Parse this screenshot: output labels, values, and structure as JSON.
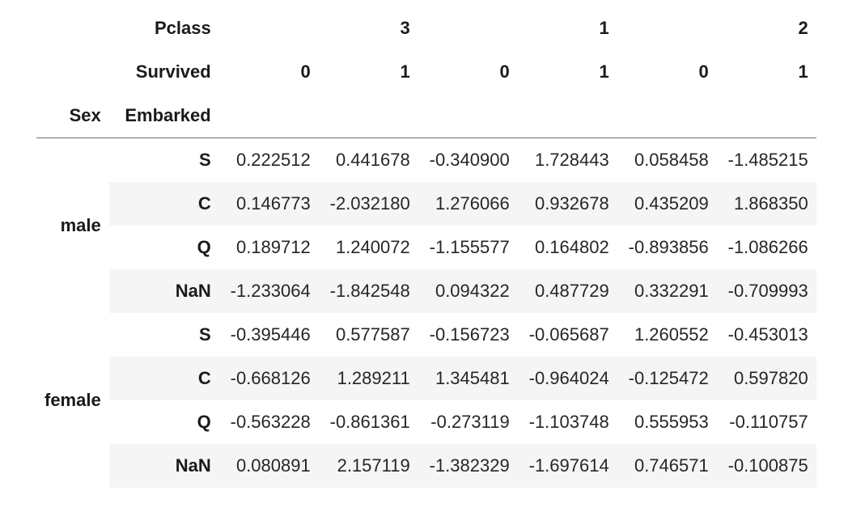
{
  "table": {
    "header": {
      "pclass_label": "Pclass",
      "survived_label": "Survived",
      "sex_label": "Sex",
      "embarked_label": "Embarked",
      "pclass_values": [
        "3",
        "1",
        "2"
      ],
      "survived_values": [
        "0",
        "1",
        "0",
        "1",
        "0",
        "1"
      ]
    },
    "body": {
      "groups": [
        {
          "sex": "male",
          "rows": [
            {
              "embarked": "S",
              "values": [
                "0.222512",
                "0.441678",
                "-0.340900",
                "1.728443",
                "0.058458",
                "-1.485215"
              ]
            },
            {
              "embarked": "C",
              "values": [
                "0.146773",
                "-2.032180",
                "1.276066",
                "0.932678",
                "0.435209",
                "1.868350"
              ]
            },
            {
              "embarked": "Q",
              "values": [
                "0.189712",
                "1.240072",
                "-1.155577",
                "0.164802",
                "-0.893856",
                "-1.086266"
              ]
            },
            {
              "embarked": "NaN",
              "values": [
                "-1.233064",
                "-1.842548",
                "0.094322",
                "0.487729",
                "0.332291",
                "-0.709993"
              ]
            }
          ]
        },
        {
          "sex": "female",
          "rows": [
            {
              "embarked": "S",
              "values": [
                "-0.395446",
                "0.577587",
                "-0.156723",
                "-0.065687",
                "1.260552",
                "-0.453013"
              ]
            },
            {
              "embarked": "C",
              "values": [
                "-0.668126",
                "1.289211",
                "1.345481",
                "-0.964024",
                "-0.125472",
                "0.597820"
              ]
            },
            {
              "embarked": "Q",
              "values": [
                "-0.563228",
                "-0.861361",
                "-0.273119",
                "-1.103748",
                "0.555953",
                "-0.110757"
              ]
            },
            {
              "embarked": "NaN",
              "values": [
                "0.080891",
                "2.157119",
                "-1.382329",
                "-1.697614",
                "0.746571",
                "-0.100875"
              ]
            }
          ]
        }
      ]
    },
    "colors": {
      "stripe": "#f5f5f5",
      "header_border": "#6e6e6e",
      "text": "#262626"
    }
  }
}
